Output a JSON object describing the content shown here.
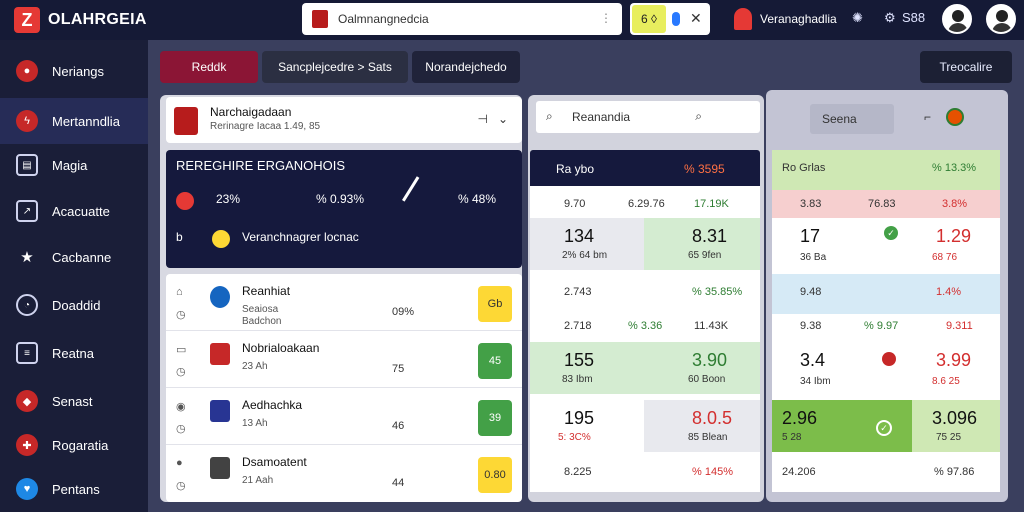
{
  "header": {
    "brand": "OLAHRGEIA",
    "search_text": "Oalmnangnedcia",
    "toggle_label": "6 ◊",
    "league_name": "Veranaghadlia",
    "icons": [
      "globe-icon",
      "gear-icon"
    ],
    "score": "S88"
  },
  "sidebar": {
    "items": [
      {
        "label": "Neriangs",
        "icon": "flag-icon"
      },
      {
        "label": "Mertanndlia",
        "icon": "bolt-icon"
      },
      {
        "label": "Magia",
        "icon": "book-icon"
      },
      {
        "label": "Acacuatte",
        "icon": "chart-icon"
      },
      {
        "label": "Cacbanne",
        "icon": "star-icon"
      },
      {
        "label": "Doaddid",
        "icon": "clock-icon"
      },
      {
        "label": "Reatna",
        "icon": "list-icon"
      },
      {
        "label": "Senast",
        "icon": "shield-icon"
      },
      {
        "label": "Rogaratia",
        "icon": "badge-icon"
      },
      {
        "label": "Pentans",
        "icon": "heart-icon"
      }
    ]
  },
  "tabs": [
    "Reddk",
    "Sancplejcedre > Sats",
    "Norandejchedo",
    "Treocalire"
  ],
  "team": {
    "name": "Narchaigadaan",
    "sub": "Rerinagre Iacaa 1.49, 85"
  },
  "stats": {
    "title": "REREGHIRE ERGANOHOIS",
    "a1": "23%",
    "a2": "% 0.93%",
    "a3": "% 48%",
    "b1": "Veranchnagrer locnac",
    "b2": "b"
  },
  "list": [
    {
      "name": "Reanhiat",
      "sub": "Seaiosa",
      "sub2": "Badchon",
      "mid": "09%",
      "odd": "Gb",
      "color": "#fdd835"
    },
    {
      "name": "Nobrialoakaan",
      "sub": "23 Ah",
      "mid": "75",
      "odd": "45",
      "color": "#43a047"
    },
    {
      "name": "Aedhachka",
      "sub": "13 Ah",
      "mid": "46",
      "odd": "39",
      "color": "#43a047"
    },
    {
      "name": "Dsamoatent",
      "sub": "21 Aah",
      "mid": "44",
      "odd": "0.80",
      "color": "#fdd835"
    }
  ],
  "mid": {
    "search": "Reanandia",
    "head_left": "Ra ybo",
    "head_right": "% 3595",
    "r1": [
      "9.70",
      "6.29.76",
      "17.19K"
    ],
    "big1": [
      "134",
      "8.31"
    ],
    "sub1": [
      "2% 64 bm",
      "65 9fen"
    ],
    "r2": [
      "2.743",
      "% 35.85%"
    ],
    "r3": [
      "2.718",
      "% 3.36",
      "11.43K"
    ],
    "big2": [
      "155",
      "3.90"
    ],
    "sub2": [
      "83 Ibm",
      "60 Boon"
    ],
    "big3": [
      "195",
      "8.0.5"
    ],
    "sub3": [
      "5: 3C%",
      "85 Blean"
    ],
    "r4": [
      "8.225",
      "% 145%"
    ]
  },
  "right": {
    "btn": "Seena",
    "head_left": "Ro Grlas",
    "head_right": "% 13.3%",
    "r1": [
      "3.83",
      "76.83",
      "3.8%"
    ],
    "big1": [
      "17",
      "1.29"
    ],
    "sub1": [
      "36 Ba",
      "68 76"
    ],
    "r2": [
      "9.48",
      "1.4%"
    ],
    "r3": [
      "9.38",
      "% 9.97",
      "9.311"
    ],
    "big2": [
      "3.4",
      "3.99"
    ],
    "sub2": [
      "34 Ibm",
      "8.6 25"
    ],
    "big3": [
      "2.96",
      "3.096"
    ],
    "sub3": [
      "5 28",
      "75 25"
    ],
    "r4": [
      "24.206",
      "% 97.86"
    ]
  }
}
